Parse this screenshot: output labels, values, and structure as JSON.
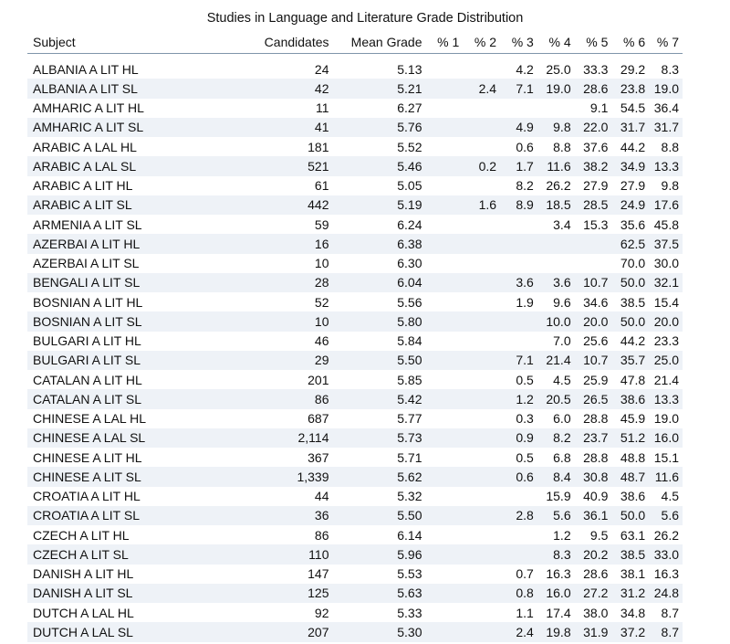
{
  "title": "Studies in Language and Literature Grade Distribution",
  "columns": [
    "Subject",
    "Candidates",
    "Mean Grade",
    "% 1",
    "% 2",
    "% 3",
    "% 4",
    "% 5",
    "% 6",
    "% 7"
  ],
  "rows": [
    [
      "ALBANIA A LIT HL",
      "24",
      "5.13",
      "",
      "",
      "4.2",
      "25.0",
      "33.3",
      "29.2",
      "8.3"
    ],
    [
      "ALBANIA A LIT SL",
      "42",
      "5.21",
      "",
      "2.4",
      "7.1",
      "19.0",
      "28.6",
      "23.8",
      "19.0"
    ],
    [
      "AMHARIC A LIT HL",
      "11",
      "6.27",
      "",
      "",
      "",
      "",
      "9.1",
      "54.5",
      "36.4"
    ],
    [
      "AMHARIC A LIT SL",
      "41",
      "5.76",
      "",
      "",
      "4.9",
      "9.8",
      "22.0",
      "31.7",
      "31.7"
    ],
    [
      "ARABIC A LAL HL",
      "181",
      "5.52",
      "",
      "",
      "0.6",
      "8.8",
      "37.6",
      "44.2",
      "8.8"
    ],
    [
      "ARABIC A LAL SL",
      "521",
      "5.46",
      "",
      "0.2",
      "1.7",
      "11.6",
      "38.2",
      "34.9",
      "13.3"
    ],
    [
      "ARABIC A LIT HL",
      "61",
      "5.05",
      "",
      "",
      "8.2",
      "26.2",
      "27.9",
      "27.9",
      "9.8"
    ],
    [
      "ARABIC A LIT SL",
      "442",
      "5.19",
      "",
      "1.6",
      "8.9",
      "18.5",
      "28.5",
      "24.9",
      "17.6"
    ],
    [
      "ARMENIA A LIT SL",
      "59",
      "6.24",
      "",
      "",
      "",
      "3.4",
      "15.3",
      "35.6",
      "45.8"
    ],
    [
      "AZERBAI A LIT HL",
      "16",
      "6.38",
      "",
      "",
      "",
      "",
      "",
      "62.5",
      "37.5"
    ],
    [
      "AZERBAI A LIT SL",
      "10",
      "6.30",
      "",
      "",
      "",
      "",
      "",
      "70.0",
      "30.0"
    ],
    [
      "BENGALI A LIT SL",
      "28",
      "6.04",
      "",
      "",
      "3.6",
      "3.6",
      "10.7",
      "50.0",
      "32.1"
    ],
    [
      "BOSNIAN A LIT HL",
      "52",
      "5.56",
      "",
      "",
      "1.9",
      "9.6",
      "34.6",
      "38.5",
      "15.4"
    ],
    [
      "BOSNIAN A LIT SL",
      "10",
      "5.80",
      "",
      "",
      "",
      "10.0",
      "20.0",
      "50.0",
      "20.0"
    ],
    [
      "BULGARI A LIT HL",
      "46",
      "5.84",
      "",
      "",
      "",
      "7.0",
      "25.6",
      "44.2",
      "23.3"
    ],
    [
      "BULGARI A LIT SL",
      "29",
      "5.50",
      "",
      "",
      "7.1",
      "21.4",
      "10.7",
      "35.7",
      "25.0"
    ],
    [
      "CATALAN A LIT HL",
      "201",
      "5.85",
      "",
      "",
      "0.5",
      "4.5",
      "25.9",
      "47.8",
      "21.4"
    ],
    [
      "CATALAN A LIT SL",
      "86",
      "5.42",
      "",
      "",
      "1.2",
      "20.5",
      "26.5",
      "38.6",
      "13.3"
    ],
    [
      "CHINESE A LAL HL",
      "687",
      "5.77",
      "",
      "",
      "0.3",
      "6.0",
      "28.8",
      "45.9",
      "19.0"
    ],
    [
      "CHINESE A LAL SL",
      "2,114",
      "5.73",
      "",
      "",
      "0.9",
      "8.2",
      "23.7",
      "51.2",
      "16.0"
    ],
    [
      "CHINESE A LIT HL",
      "367",
      "5.71",
      "",
      "",
      "0.5",
      "6.8",
      "28.8",
      "48.8",
      "15.1"
    ],
    [
      "CHINESE A LIT SL",
      "1,339",
      "5.62",
      "",
      "",
      "0.6",
      "8.4",
      "30.8",
      "48.7",
      "11.6"
    ],
    [
      "CROATIA A LIT HL",
      "44",
      "5.32",
      "",
      "",
      "",
      "15.9",
      "40.9",
      "38.6",
      "4.5"
    ],
    [
      "CROATIA A LIT SL",
      "36",
      "5.50",
      "",
      "",
      "2.8",
      "5.6",
      "36.1",
      "50.0",
      "5.6"
    ],
    [
      "CZECH A LIT HL",
      "86",
      "6.14",
      "",
      "",
      "",
      "1.2",
      "9.5",
      "63.1",
      "26.2"
    ],
    [
      "CZECH A LIT SL",
      "110",
      "5.96",
      "",
      "",
      "",
      "8.3",
      "20.2",
      "38.5",
      "33.0"
    ],
    [
      "DANISH A LIT HL",
      "147",
      "5.53",
      "",
      "",
      "0.7",
      "16.3",
      "28.6",
      "38.1",
      "16.3"
    ],
    [
      "DANISH A LIT SL",
      "125",
      "5.63",
      "",
      "",
      "0.8",
      "16.0",
      "27.2",
      "31.2",
      "24.8"
    ],
    [
      "DUTCH A LAL HL",
      "92",
      "5.33",
      "",
      "",
      "1.1",
      "17.4",
      "38.0",
      "34.8",
      "8.7"
    ],
    [
      "DUTCH A LAL SL",
      "207",
      "5.30",
      "",
      "",
      "2.4",
      "19.8",
      "31.9",
      "37.2",
      "8.7"
    ]
  ]
}
